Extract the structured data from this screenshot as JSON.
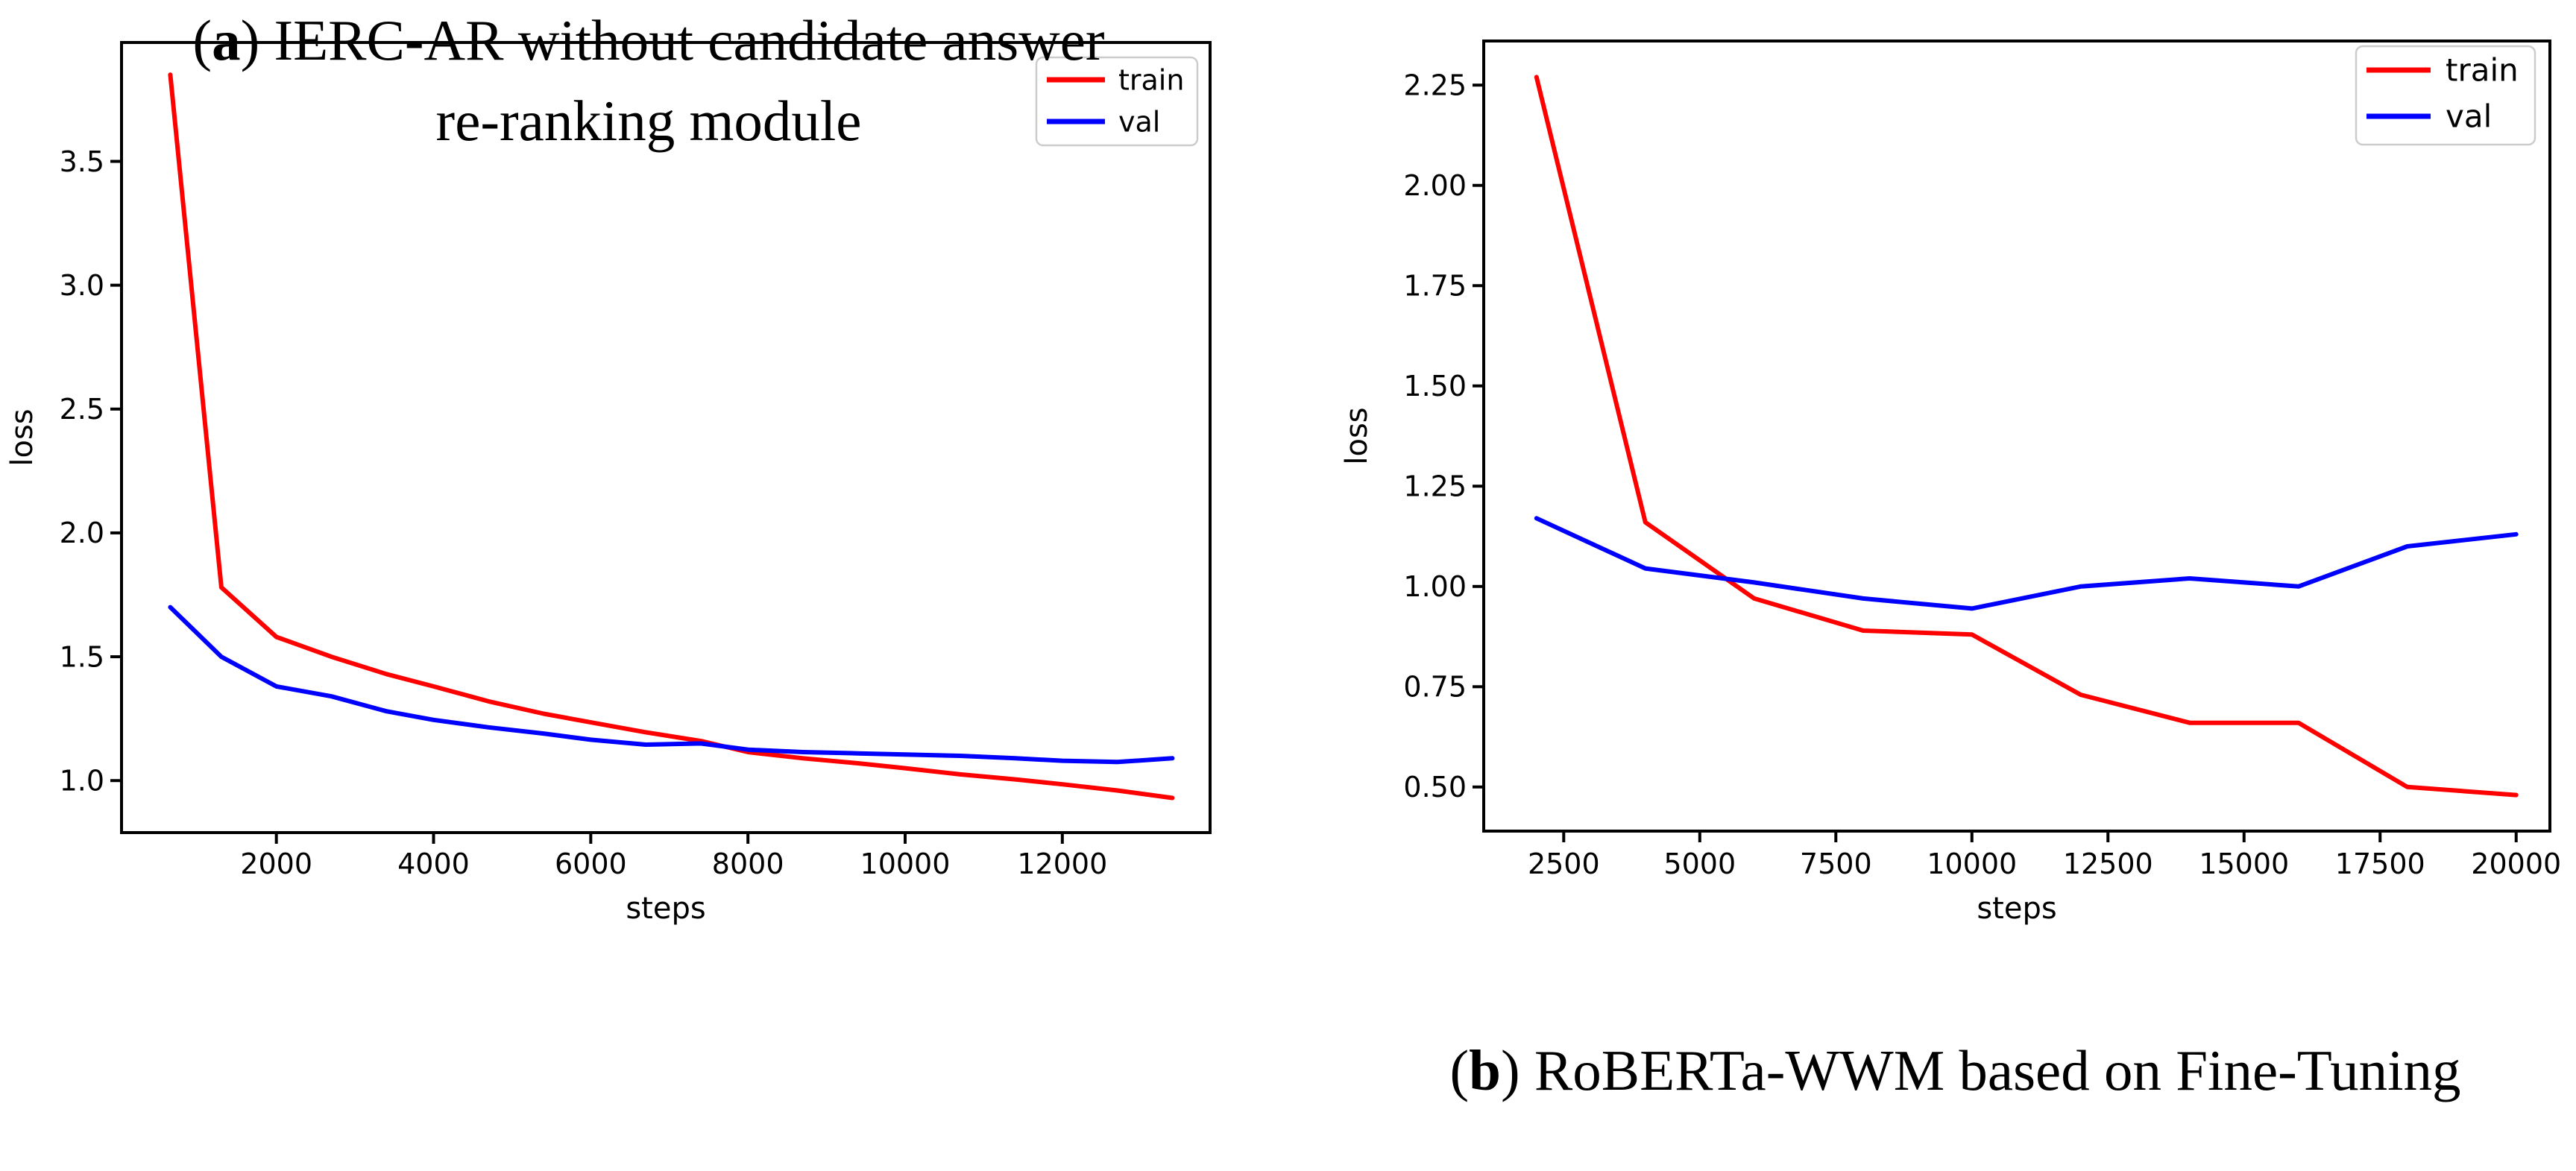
{
  "figure_background": "#ffffff",
  "text_color": "#000000",
  "legend_border_color": "#cccccc",
  "chart_data": [
    {
      "id": "a",
      "type": "line",
      "title": "",
      "xlabel": "steps",
      "ylabel": "loss",
      "xlim": [
        30,
        13880
      ],
      "ylim": [
        0.79,
        3.98
      ],
      "x_ticks": [
        2000,
        4000,
        6000,
        8000,
        10000,
        12000
      ],
      "y_ticks": [
        1.0,
        1.5,
        2.0,
        2.5,
        3.0,
        3.5
      ],
      "y_tick_decimals": 1,
      "grid": false,
      "legend_position": "upper right",
      "series": [
        {
          "name": "train",
          "color": "#ff0000",
          "x": [
            650,
            1300,
            2000,
            2700,
            3400,
            4000,
            4700,
            5400,
            6000,
            6700,
            7400,
            8000,
            8700,
            9400,
            10000,
            10700,
            11400,
            12000,
            12700,
            13400
          ],
          "y": [
            3.85,
            1.78,
            1.58,
            1.5,
            1.43,
            1.38,
            1.32,
            1.27,
            1.235,
            1.195,
            1.16,
            1.115,
            1.09,
            1.07,
            1.05,
            1.025,
            1.005,
            0.985,
            0.96,
            0.93
          ]
        },
        {
          "name": "val",
          "color": "#0000ff",
          "x": [
            650,
            1300,
            2000,
            2700,
            3400,
            4000,
            4700,
            5400,
            6000,
            6700,
            7400,
            8000,
            8700,
            9400,
            10000,
            10700,
            11400,
            12000,
            12700,
            13400
          ],
          "y": [
            1.7,
            1.5,
            1.38,
            1.34,
            1.28,
            1.245,
            1.215,
            1.19,
            1.165,
            1.145,
            1.15,
            1.125,
            1.115,
            1.11,
            1.105,
            1.1,
            1.09,
            1.08,
            1.075,
            1.09
          ]
        }
      ]
    },
    {
      "id": "b",
      "type": "line",
      "title": "",
      "xlabel": "steps",
      "ylabel": "loss",
      "xlim": [
        1030,
        20620
      ],
      "ylim": [
        0.39,
        2.36
      ],
      "x_ticks": [
        2500,
        5000,
        7500,
        10000,
        12500,
        15000,
        17500,
        20000
      ],
      "y_ticks": [
        0.5,
        0.75,
        1.0,
        1.25,
        1.5,
        1.75,
        2.0,
        2.25
      ],
      "y_tick_decimals": 2,
      "grid": false,
      "legend_position": "upper right",
      "series": [
        {
          "name": "train",
          "color": "#ff0000",
          "x": [
            2000,
            4000,
            6000,
            8000,
            10000,
            12000,
            14000,
            16000,
            18000,
            20000
          ],
          "y": [
            2.27,
            1.16,
            0.97,
            0.89,
            0.88,
            0.73,
            0.66,
            0.66,
            0.5,
            0.48
          ]
        },
        {
          "name": "val",
          "color": "#0000ff",
          "x": [
            2000,
            4000,
            6000,
            8000,
            10000,
            12000,
            14000,
            16000,
            18000,
            20000
          ],
          "y": [
            1.17,
            1.045,
            1.01,
            0.97,
            0.945,
            1.0,
            1.02,
            1.0,
            1.1,
            1.13
          ]
        }
      ]
    }
  ],
  "captions": [
    {
      "prefix": "(",
      "letter": "a",
      "suffix": ") ",
      "lines": [
        "IERC-AR without candidate answer",
        "re-ranking module"
      ]
    },
    {
      "prefix": "(",
      "letter": "b",
      "suffix": ") ",
      "lines": [
        "RoBERTa-WWM based on Fine-Tuning"
      ]
    }
  ]
}
